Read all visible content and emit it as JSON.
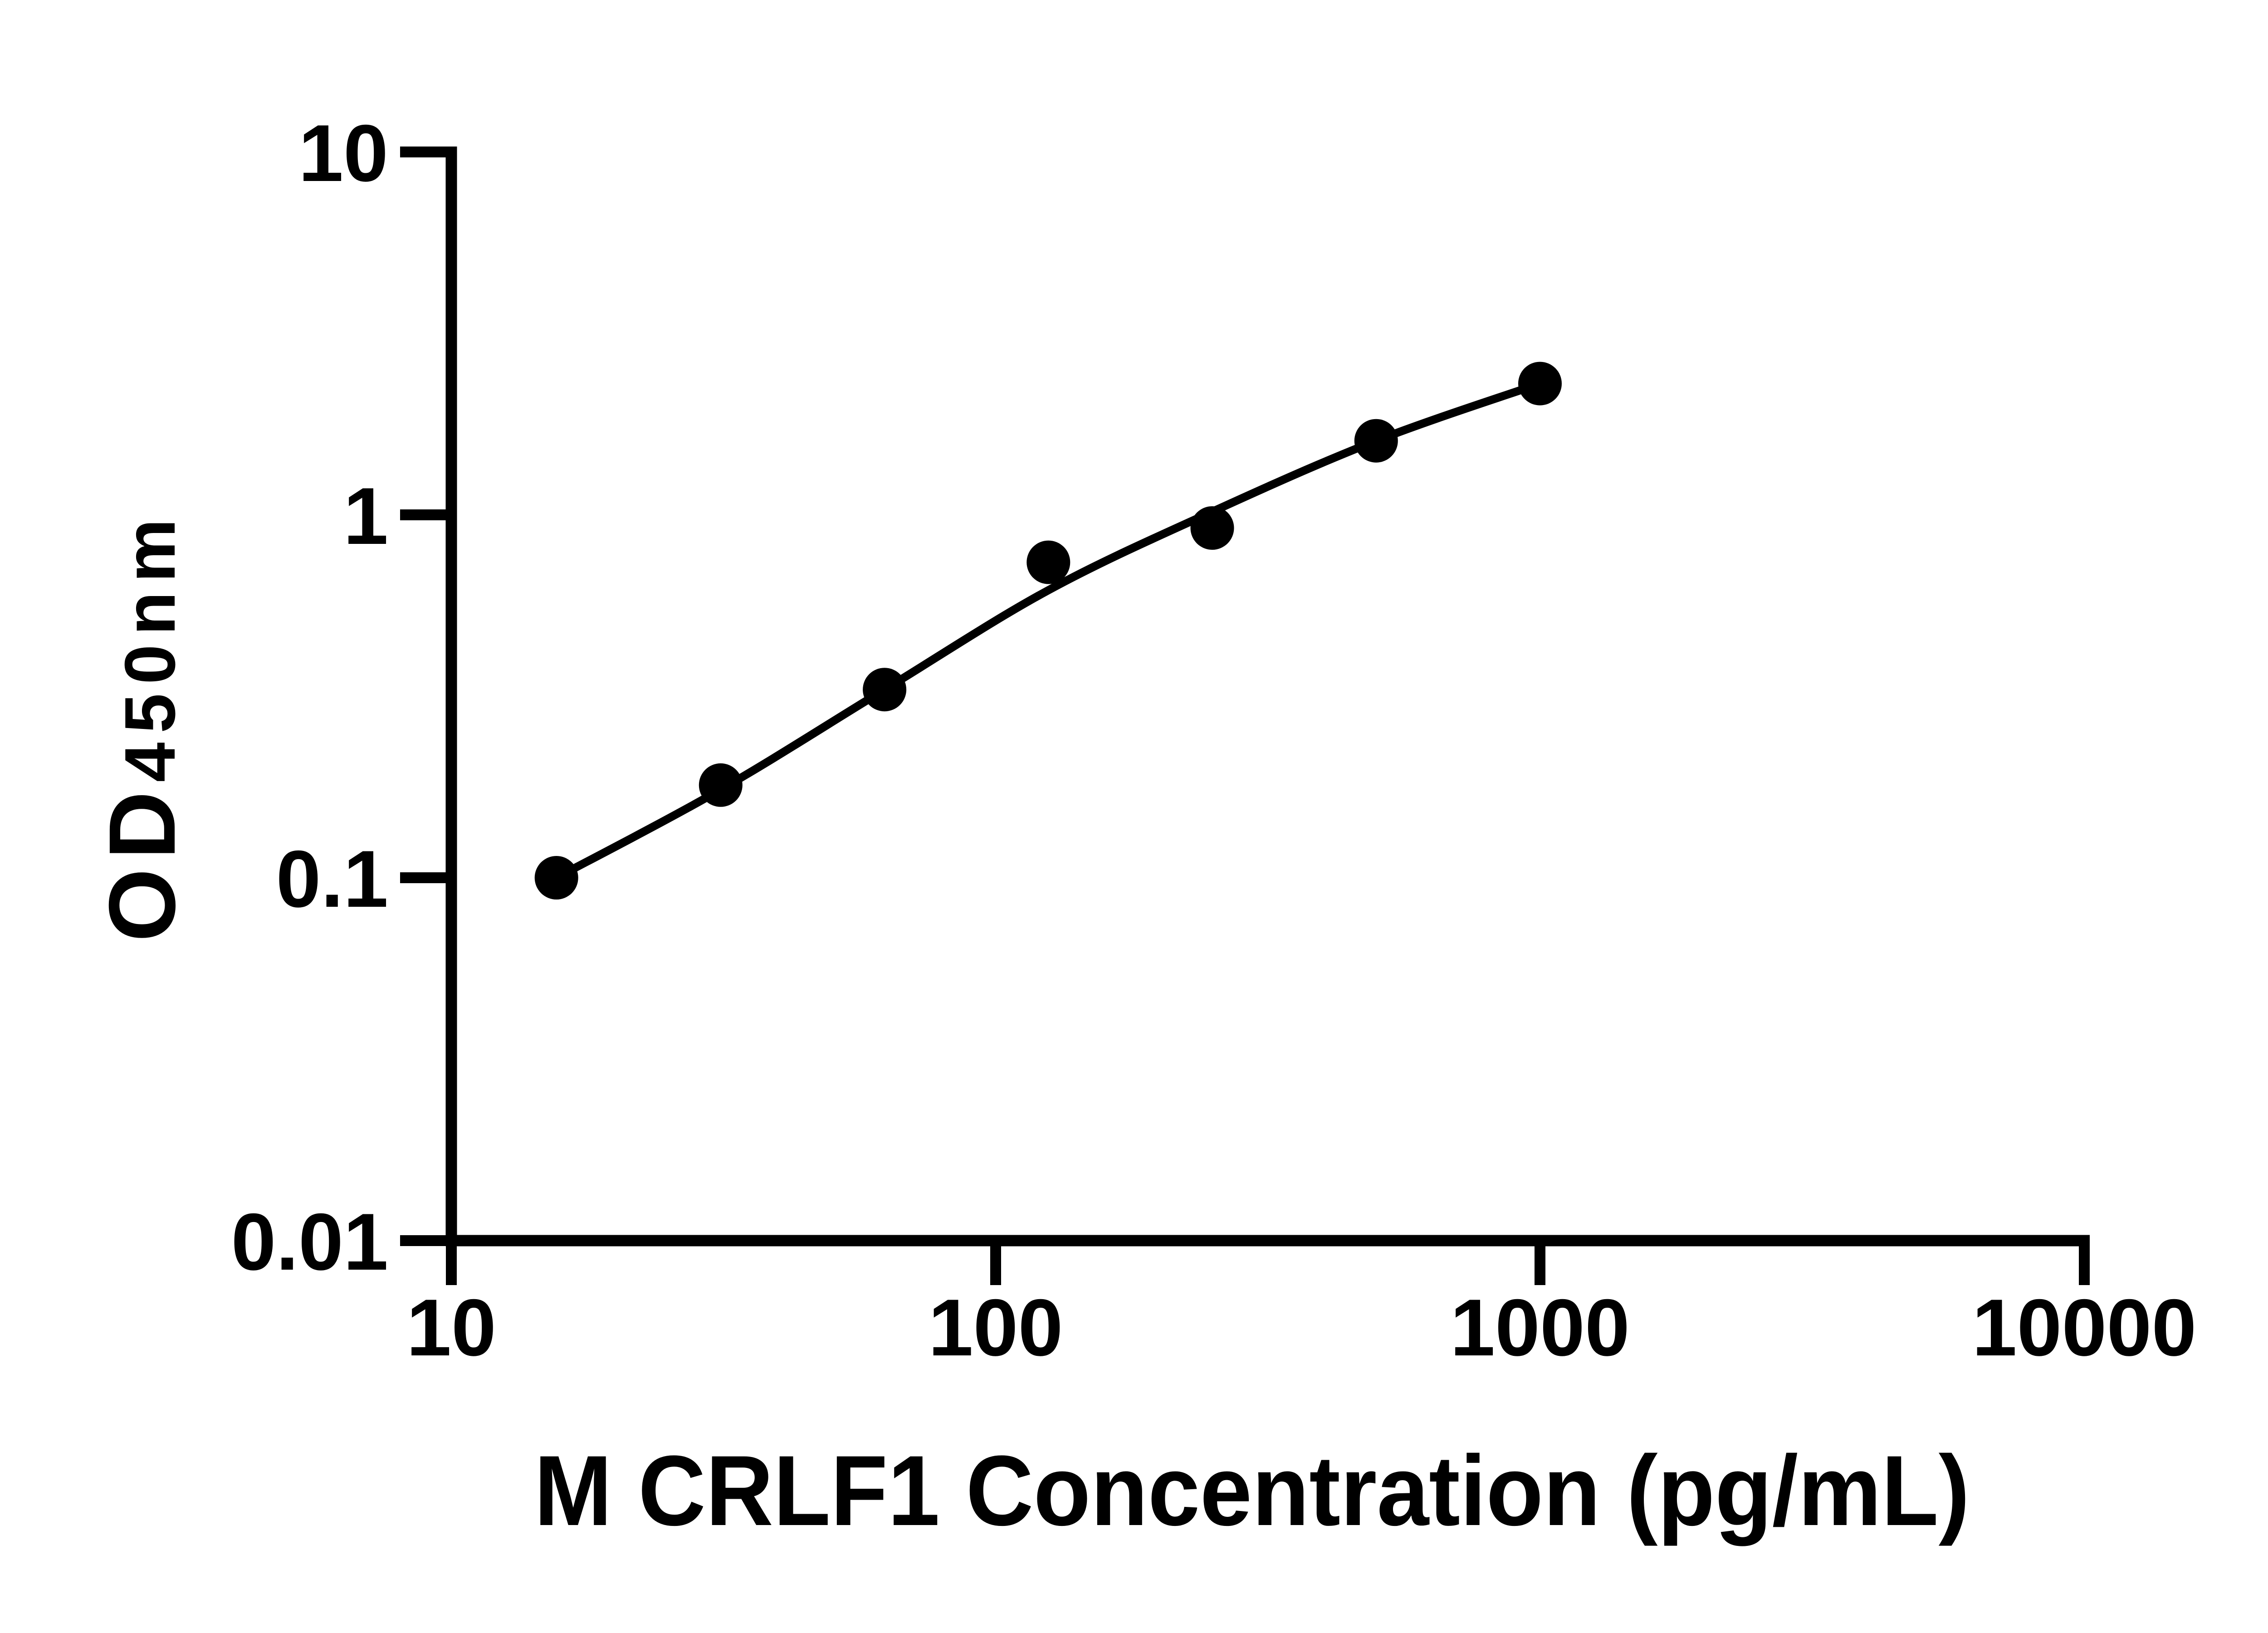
{
  "figure": {
    "background": "#ffffff",
    "ink": "#000000"
  },
  "chart_data": {
    "type": "scatter",
    "title": "",
    "xlabel": "M CRLF1 Concentration (pg/mL)",
    "ylabel": "OD450nm",
    "ylabel_parts": {
      "main": "OD",
      "subscript": "450nm"
    },
    "x_scale": "log10",
    "y_scale": "log10",
    "xlim": [
      10,
      10000
    ],
    "ylim": [
      0.01,
      10
    ],
    "x_ticks": [
      10,
      100,
      1000,
      10000
    ],
    "x_tick_labels": [
      "10",
      "100",
      "1000",
      "10000"
    ],
    "y_ticks": [
      10,
      1,
      0.1,
      0.01
    ],
    "y_tick_labels": [
      "10",
      "1",
      "0.1",
      "0.01"
    ],
    "grid": false,
    "legend": null,
    "marker_color": "#000000",
    "line_color": "#000000",
    "series": [
      {
        "name": "standard-points",
        "kind": "scatter",
        "marker": "circle",
        "x": [
          15.6,
          31.25,
          62.5,
          125,
          250,
          500,
          1000
        ],
        "y": [
          0.1,
          0.18,
          0.33,
          0.74,
          0.92,
          1.6,
          2.3
        ]
      },
      {
        "name": "fitted-curve",
        "kind": "line",
        "x": [
          15.6,
          31.25,
          62.5,
          125,
          250,
          500,
          1000
        ],
        "y": [
          0.1,
          0.175,
          0.33,
          0.62,
          1.02,
          1.6,
          2.3
        ]
      }
    ]
  }
}
